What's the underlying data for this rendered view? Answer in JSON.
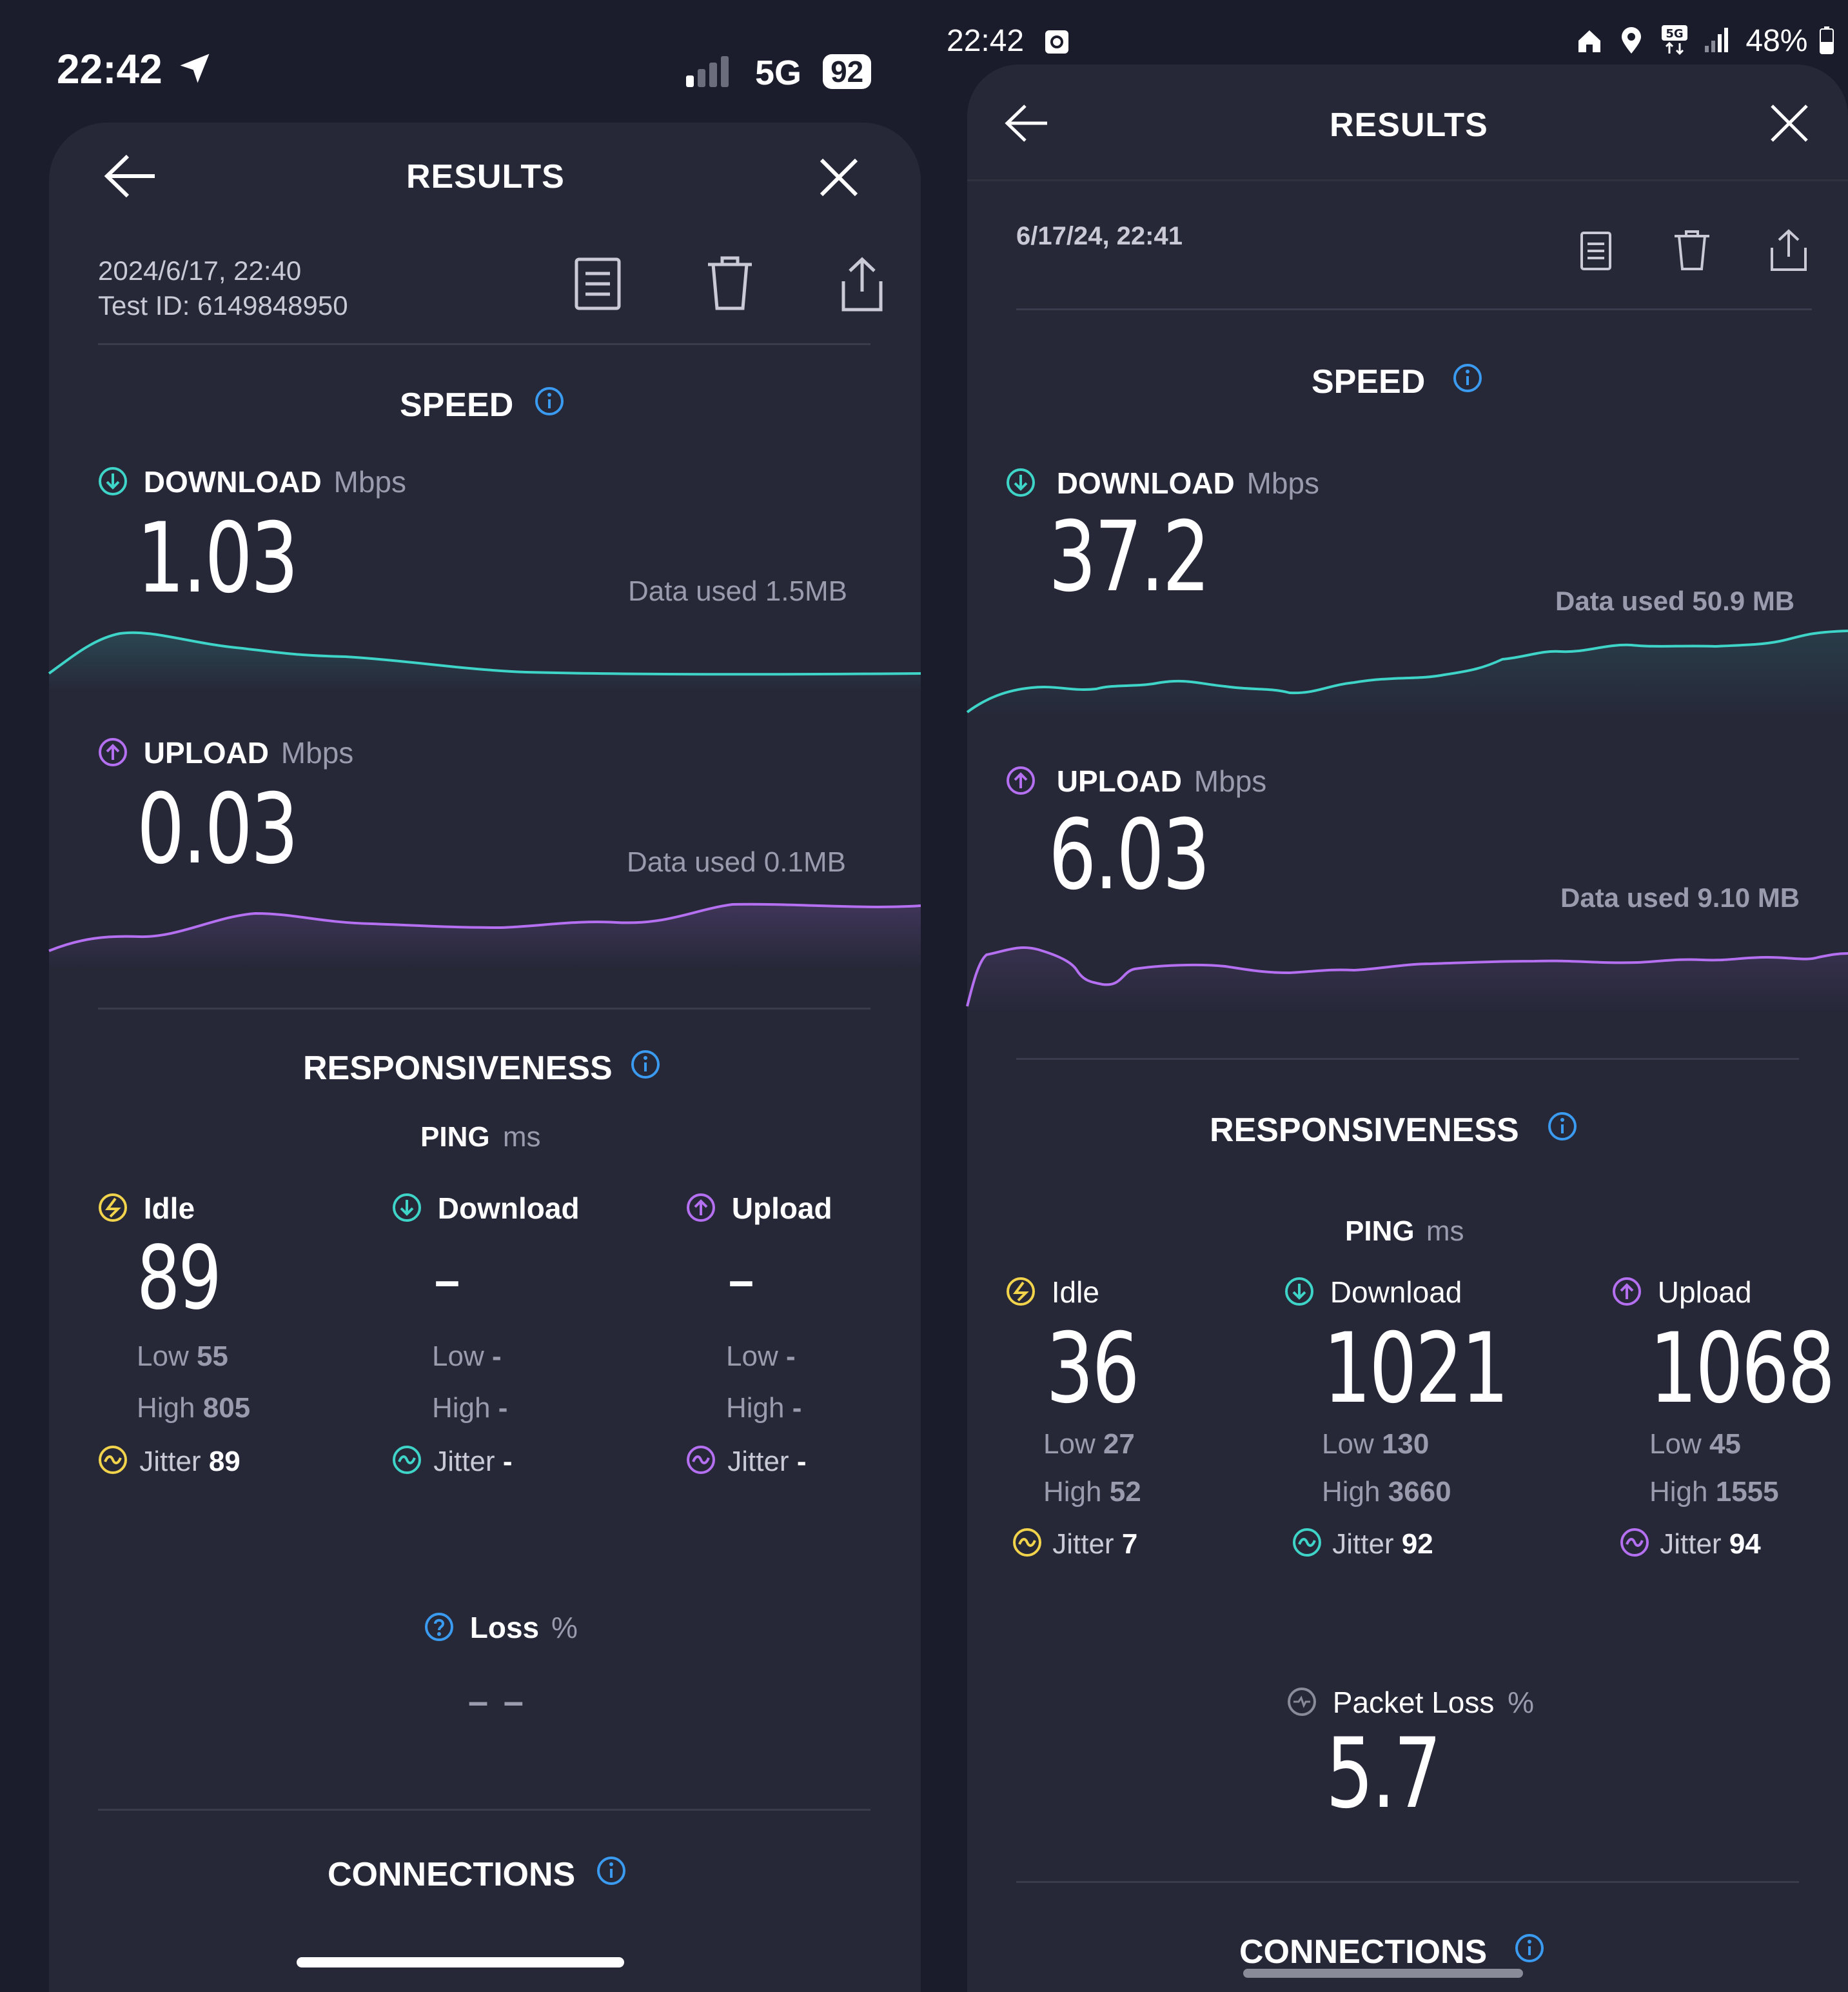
{
  "colors": {
    "download": "#3fd4c8",
    "upload": "#b470f0",
    "idle": "#f2d34c",
    "info": "#3a9bf0",
    "background": "#1b1d2c",
    "sheet": "#262838"
  },
  "left": {
    "status": {
      "time": "22:42",
      "network": "5G",
      "battery": "92"
    },
    "header": {
      "title": "RESULTS"
    },
    "meta": {
      "date": "2024/6/17, 22:40",
      "test_id": "Test ID: 6149848950"
    },
    "speed": {
      "title": "SPEED",
      "download": {
        "label": "DOWNLOAD",
        "unit": "Mbps",
        "value": "1.03",
        "data_used": "Data used 1.5MB"
      },
      "upload": {
        "label": "UPLOAD",
        "unit": "Mbps",
        "value": "0.03",
        "data_used": "Data used 0.1MB"
      }
    },
    "responsiveness": {
      "title": "RESPONSIVENESS",
      "ping_label": "PING",
      "ping_unit": "ms",
      "idle": {
        "label": "Idle",
        "value": "89",
        "low_label": "Low",
        "low": "55",
        "high_label": "High",
        "high": "805",
        "jitter_label": "Jitter",
        "jitter": "89"
      },
      "download": {
        "label": "Download",
        "value": "–",
        "low_label": "Low",
        "low": "-",
        "high_label": "High",
        "high": "-",
        "jitter_label": "Jitter",
        "jitter": "-"
      },
      "upload": {
        "label": "Upload",
        "value": "–",
        "low_label": "Low",
        "low": "-",
        "high_label": "High",
        "high": "-",
        "jitter_label": "Jitter",
        "jitter": "-"
      },
      "loss": {
        "label": "Loss",
        "unit": "%",
        "value": "– –"
      }
    },
    "connections": {
      "title": "CONNECTIONS"
    }
  },
  "right": {
    "status": {
      "time": "22:42",
      "battery": "48%"
    },
    "header": {
      "title": "RESULTS"
    },
    "meta": {
      "date": "6/17/24, 22:41"
    },
    "speed": {
      "title": "SPEED",
      "download": {
        "label": "DOWNLOAD",
        "unit": "Mbps",
        "value": "37.2",
        "data_used": "Data used 50.9 MB"
      },
      "upload": {
        "label": "UPLOAD",
        "unit": "Mbps",
        "value": "6.03",
        "data_used": "Data used 9.10 MB"
      }
    },
    "responsiveness": {
      "title": "RESPONSIVENESS",
      "ping_label": "PING",
      "ping_unit": "ms",
      "idle": {
        "label": "Idle",
        "value": "36",
        "low_label": "Low",
        "low": "27",
        "high_label": "High",
        "high": "52",
        "jitter_label": "Jitter",
        "jitter": "7"
      },
      "download": {
        "label": "Download",
        "value": "1021",
        "low_label": "Low",
        "low": "130",
        "high_label": "High",
        "high": "3660",
        "jitter_label": "Jitter",
        "jitter": "92"
      },
      "upload": {
        "label": "Upload",
        "value": "1068",
        "low_label": "Low",
        "low": "45",
        "high_label": "High",
        "high": "1555",
        "jitter_label": "Jitter",
        "jitter": "94"
      },
      "loss": {
        "label": "Packet Loss",
        "unit": "%",
        "value": "5.7"
      }
    },
    "connections": {
      "title": "CONNECTIONS"
    }
  }
}
